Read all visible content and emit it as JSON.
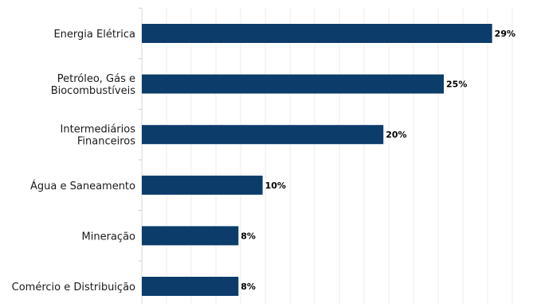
{
  "chart_data": {
    "type": "bar",
    "orientation": "horizontal",
    "categories": [
      "Energia Elétrica",
      "Petróleo, Gás e Biocombustíveis",
      "Intermediários Financeiros",
      "Água e Saneamento",
      "Mineração",
      "Comércio e Distribuição"
    ],
    "category_lines": [
      [
        "Energia Elétrica"
      ],
      [
        "Petróleo, Gás e",
        "Biocombustíveis"
      ],
      [
        "Intermediários",
        "Financeiros"
      ],
      [
        "Água e Saneamento"
      ],
      [
        "Mineração"
      ],
      [
        "Comércio e Distribuição"
      ]
    ],
    "values": [
      29,
      25,
      20,
      10,
      8,
      8
    ],
    "value_labels": [
      "29%",
      "25%",
      "20%",
      "10%",
      "8%",
      "8%"
    ],
    "xlim": [
      0,
      31
    ],
    "grid": true,
    "bar_color": "#0b3c6a",
    "grid_color": "#ececec"
  }
}
